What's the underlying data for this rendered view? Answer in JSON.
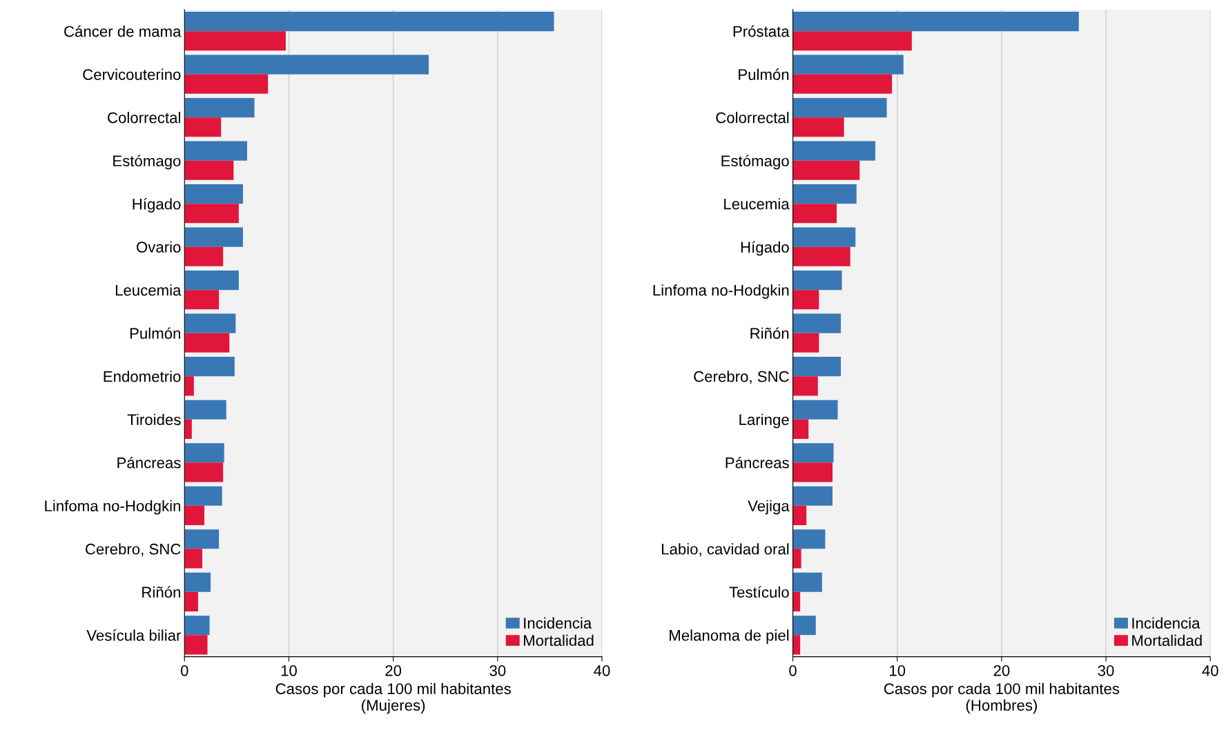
{
  "chart_data": [
    {
      "type": "bar",
      "orientation": "horizontal",
      "xlabel": "Casos por cada 100 mil habitantes\n(Mujeres)",
      "categories": [
        "Cáncer de mama",
        "Cervicouterino",
        "Colorrectal",
        "Estómago",
        "Hígado",
        "Ovario",
        "Leucemia",
        "Pulmón",
        "Endometrio",
        "Tiroides",
        "Páncreas",
        "Linfoma no-Hodgkin",
        "Cerebro, SNC",
        "Riñón",
        "Vesícula biliar"
      ],
      "series": [
        {
          "name": "Incidencia",
          "color": "#3a78b5",
          "values": [
            35.4,
            23.4,
            6.7,
            6.0,
            5.6,
            5.6,
            5.2,
            4.9,
            4.8,
            4.0,
            3.8,
            3.6,
            3.3,
            2.5,
            2.4
          ]
        },
        {
          "name": "Mortalidad",
          "color": "#e0163a",
          "values": [
            9.7,
            8.0,
            3.5,
            4.7,
            5.2,
            3.7,
            3.3,
            4.3,
            0.9,
            0.7,
            3.7,
            1.9,
            1.7,
            1.3,
            2.2
          ]
        }
      ],
      "xlim": [
        0,
        40
      ],
      "xticks": [
        0,
        10,
        20,
        30,
        40
      ],
      "grid": "x",
      "legend": "bottom right"
    },
    {
      "type": "bar",
      "orientation": "horizontal",
      "xlabel": "Casos por cada 100 mil habitantes\n(Hombres)",
      "categories": [
        "Próstata",
        "Pulmón",
        "Colorrectal",
        "Estómago",
        "Leucemia",
        "Hígado",
        "Linfoma no-Hodgkin",
        "Riñón",
        "Cerebro, SNC",
        "Laringe",
        "Páncreas",
        "Vejiga",
        "Labio, cavidad oral",
        "Testículo",
        "Melanoma de piel"
      ],
      "series": [
        {
          "name": "Incidencia",
          "color": "#3a78b5",
          "values": [
            27.4,
            10.6,
            9.0,
            7.9,
            6.1,
            6.0,
            4.7,
            4.6,
            4.6,
            4.3,
            3.9,
            3.8,
            3.1,
            2.8,
            2.2
          ]
        },
        {
          "name": "Mortalidad",
          "color": "#e0163a",
          "values": [
            11.4,
            9.5,
            4.9,
            6.4,
            4.2,
            5.5,
            2.5,
            2.5,
            2.4,
            1.5,
            3.8,
            1.3,
            0.8,
            0.7,
            0.7
          ]
        }
      ],
      "xlim": [
        0,
        40
      ],
      "xticks": [
        0,
        10,
        20,
        30,
        40
      ],
      "grid": "x",
      "legend": "bottom right"
    }
  ]
}
